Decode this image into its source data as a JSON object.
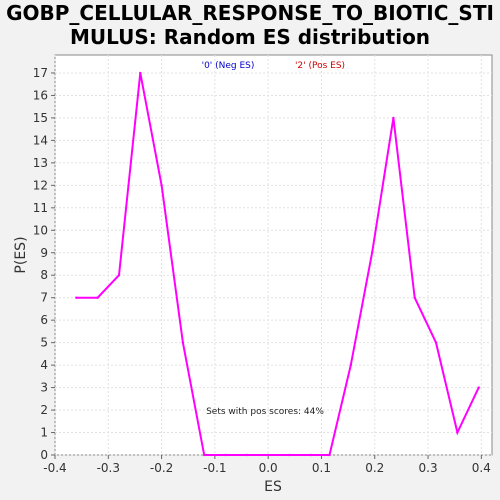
{
  "chart_data": {
    "type": "line",
    "title_lines": [
      "GOBP_CELLULAR_RESPONSE_TO_BIOTIC_STI",
      "MULUS: Random ES distribution"
    ],
    "xlabel": "ES",
    "ylabel": "P(ES)",
    "xlim": [
      -0.4,
      0.42
    ],
    "ylim": [
      0,
      17.8
    ],
    "xticks": [
      -0.4,
      -0.3,
      -0.2,
      -0.1,
      0.0,
      0.1,
      0.2,
      0.3,
      0.4
    ],
    "xtick_labels": [
      "-0.4",
      "-0.3",
      "-0.2",
      "-0.1",
      "0.0",
      "0.1",
      "0.2",
      "0.3",
      "0.4"
    ],
    "yticks": [
      0,
      1,
      2,
      3,
      4,
      5,
      6,
      7,
      8,
      9,
      10,
      11,
      12,
      13,
      14,
      15,
      16,
      17
    ],
    "ytick_labels": [
      "0",
      "1",
      "2",
      "3",
      "4",
      "5",
      "6",
      "7",
      "8",
      "9",
      "10",
      "11",
      "12",
      "13",
      "14",
      "15",
      "16",
      "17"
    ],
    "grid": true,
    "legend": [
      {
        "label": "'0' (Neg ES)",
        "color": "#0000cc"
      },
      {
        "label": "'2' (Pos ES)",
        "color": "#cc0000"
      }
    ],
    "series": [
      {
        "color": "#ff00ff",
        "x": [
          -0.36,
          -0.32,
          -0.28,
          -0.24,
          -0.2,
          -0.16,
          -0.12,
          -0.08,
          -0.04,
          0.0,
          0.04,
          0.08,
          0.115,
          0.155,
          0.195,
          0.235,
          0.275,
          0.315,
          0.355,
          0.395
        ],
        "y": [
          7,
          7,
          8,
          17,
          12,
          5,
          0,
          0,
          0,
          0,
          0,
          0,
          0,
          4,
          9,
          15,
          7,
          5,
          1,
          3
        ]
      }
    ],
    "annotation": "Sets with pos scores: 44%"
  }
}
